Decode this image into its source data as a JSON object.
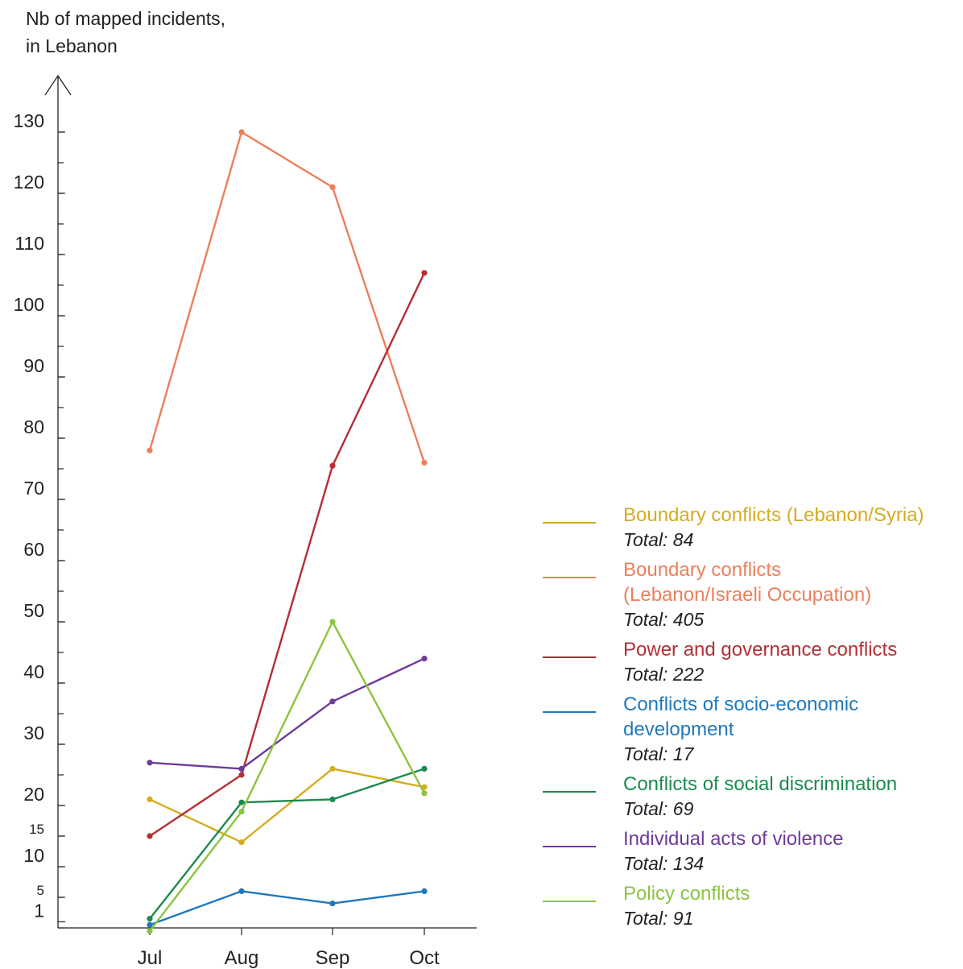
{
  "chart_data": {
    "type": "line",
    "ylabel_lines": [
      "Nb of mapped incidents,",
      "in Lebanon"
    ],
    "categories": [
      "Jul",
      "Aug",
      "Sep",
      "Oct"
    ],
    "ylim": [
      0,
      138
    ],
    "y_major_ticks": [
      1,
      5,
      10,
      15,
      20,
      30,
      40,
      50,
      60,
      70,
      80,
      90,
      100,
      110,
      120,
      130
    ],
    "y_small_labels": [
      5,
      15
    ],
    "grid": false,
    "legend_position": "right",
    "series": [
      {
        "name": "Boundary conflicts (Lebanon/Syria)",
        "name_lines": [
          "Boundary conflicts (Lebanon/Syria)"
        ],
        "total": "Total: 84",
        "color": "#d4ad1f",
        "values": [
          21,
          14,
          26,
          23
        ]
      },
      {
        "name": "Boundary conflicts (Lebanon/Israeli Occupation)",
        "name_lines": [
          "Boundary conflicts",
          "(Lebanon/Israeli Occupation)"
        ],
        "total": "Total: 405",
        "color": "#ec7f5a",
        "values": [
          78,
          130,
          121,
          76
        ]
      },
      {
        "name": "Power and governance conflicts",
        "name_lines": [
          "Power and governance conflicts"
        ],
        "total": "Total: 222",
        "color": "#b32f34",
        "values": [
          15,
          25,
          75.5,
          107
        ]
      },
      {
        "name": "Conflicts of socio-economic development",
        "name_lines": [
          "Conflicts of socio-economic",
          "development"
        ],
        "total": "Total: 17",
        "color": "#1f78bd",
        "values": [
          0.5,
          6,
          4,
          6
        ]
      },
      {
        "name": "Conflicts of social discrimination",
        "name_lines": [
          "Conflicts of social discrimination"
        ],
        "total": "Total: 69",
        "color": "#1c8a4e",
        "values": [
          1.5,
          20.5,
          21,
          26
        ]
      },
      {
        "name": "Individual acts of violence",
        "name_lines": [
          "Individual acts of violence"
        ],
        "total": "Total: 134",
        "color": "#6e3b9a",
        "values": [
          27,
          26,
          37,
          44
        ]
      },
      {
        "name": "Policy conflicts",
        "name_lines": [
          "Policy conflicts"
        ],
        "total": "Total: 91",
        "color": "#8cc43f",
        "values": [
          -0.5,
          19,
          50,
          22
        ]
      }
    ]
  }
}
